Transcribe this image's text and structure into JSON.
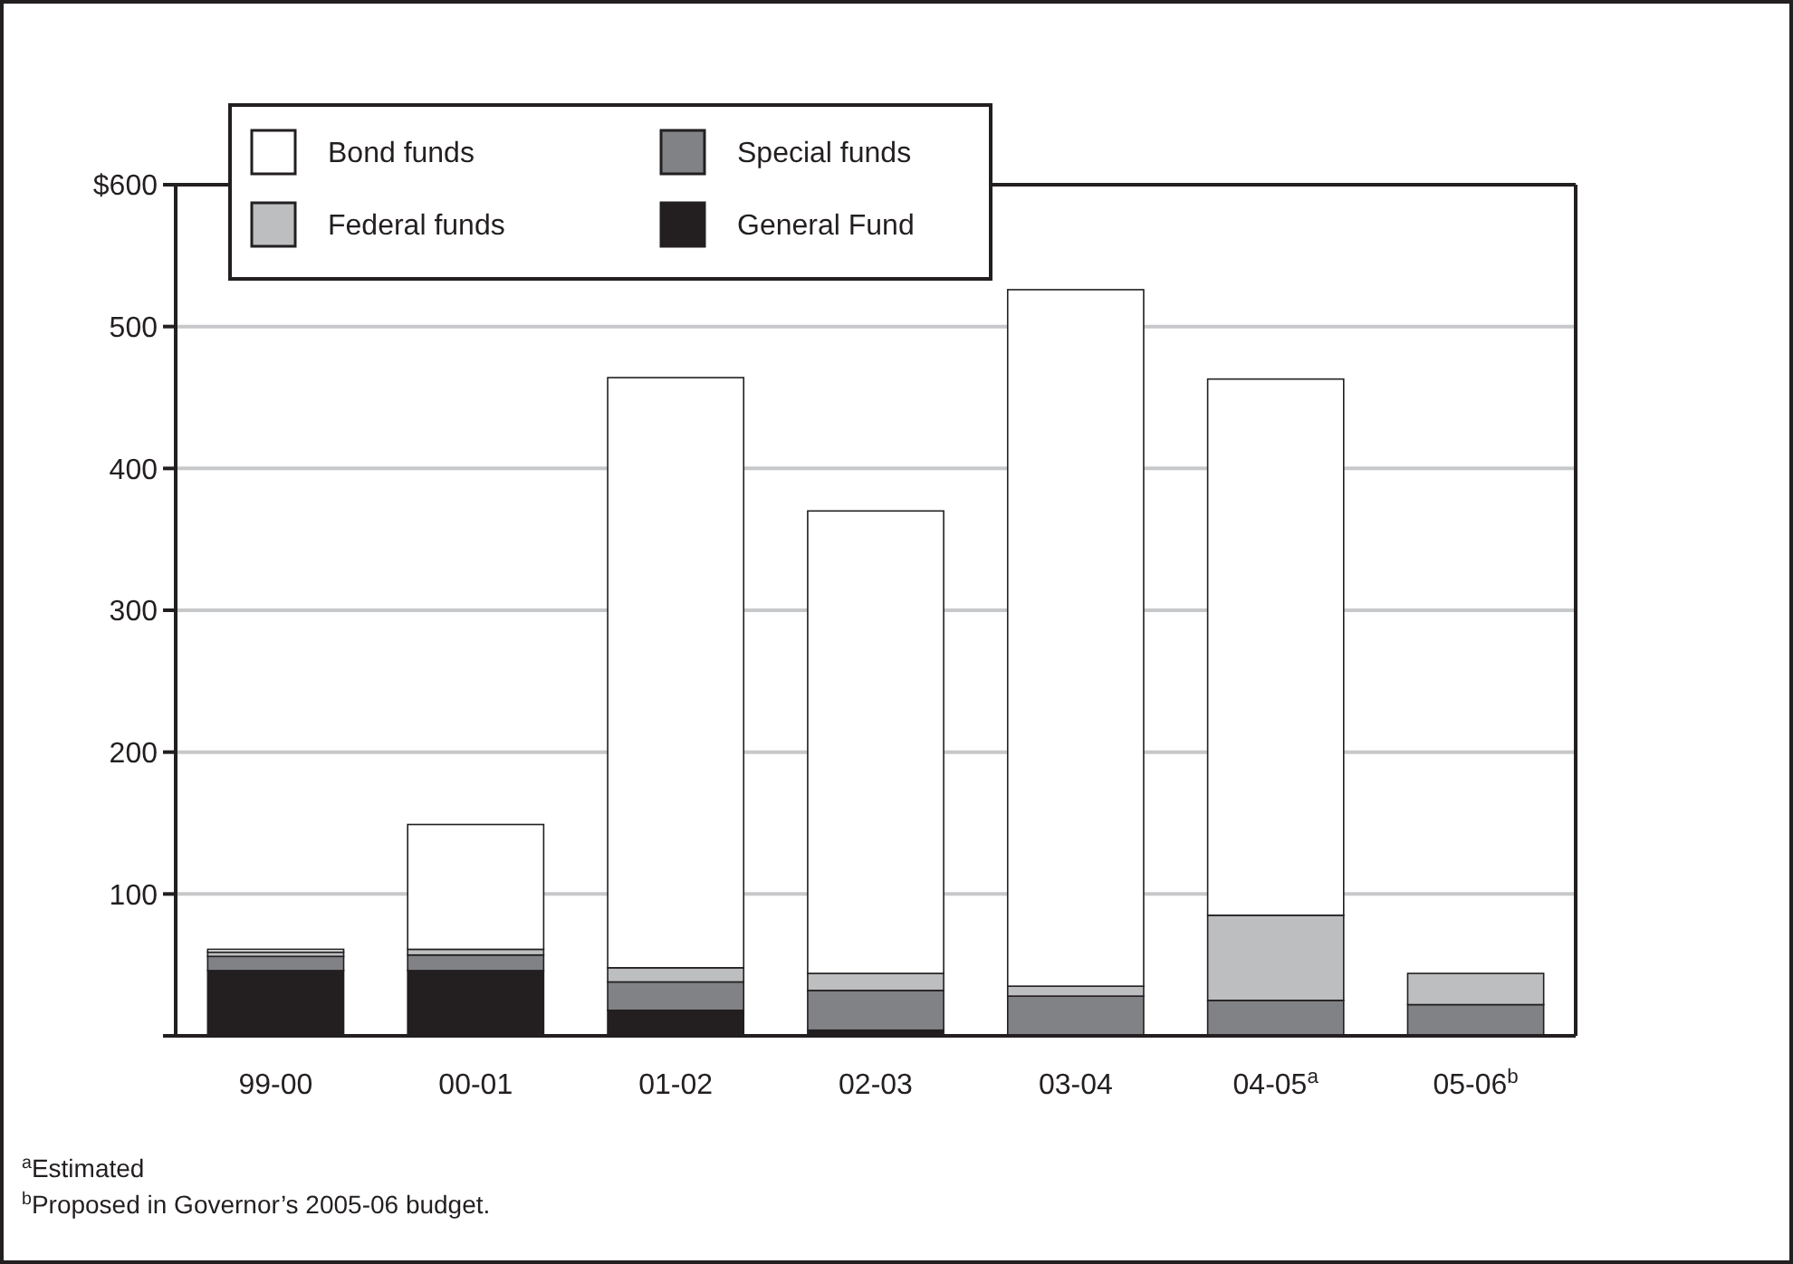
{
  "chart_data": {
    "type": "bar",
    "stacked": true,
    "categories": [
      "99-00",
      "00-01",
      "01-02",
      "02-03",
      "03-04",
      "04-05$^{a}$",
      "05-06$^{b}$"
    ],
    "series": [
      {
        "name": "General Fund",
        "color": "#231f20",
        "values": [
          46,
          46,
          18,
          4,
          0,
          0,
          0
        ]
      },
      {
        "name": "Special funds",
        "color": "#808285",
        "values": [
          10,
          11,
          20,
          28,
          28,
          25,
          22
        ]
      },
      {
        "name": "Federal funds",
        "color": "#bcbec0",
        "values": [
          3,
          4,
          10,
          12,
          7,
          60,
          22
        ]
      },
      {
        "name": "Bond funds",
        "color": "#ffffff",
        "values": [
          2,
          88,
          416,
          326,
          491,
          378,
          0
        ]
      }
    ],
    "ylim": [
      0,
      600
    ],
    "yticks": [
      {
        "value": 0,
        "label": null
      },
      100,
      200,
      300,
      400,
      500,
      {
        "value": 600,
        "label": "$600"
      }
    ],
    "grid": "y",
    "legend": "top left",
    "annotations": [
      "$^{a}$Estimated",
      "$^{b}$Proposed in Governor’s 2005-06 budget."
    ]
  }
}
